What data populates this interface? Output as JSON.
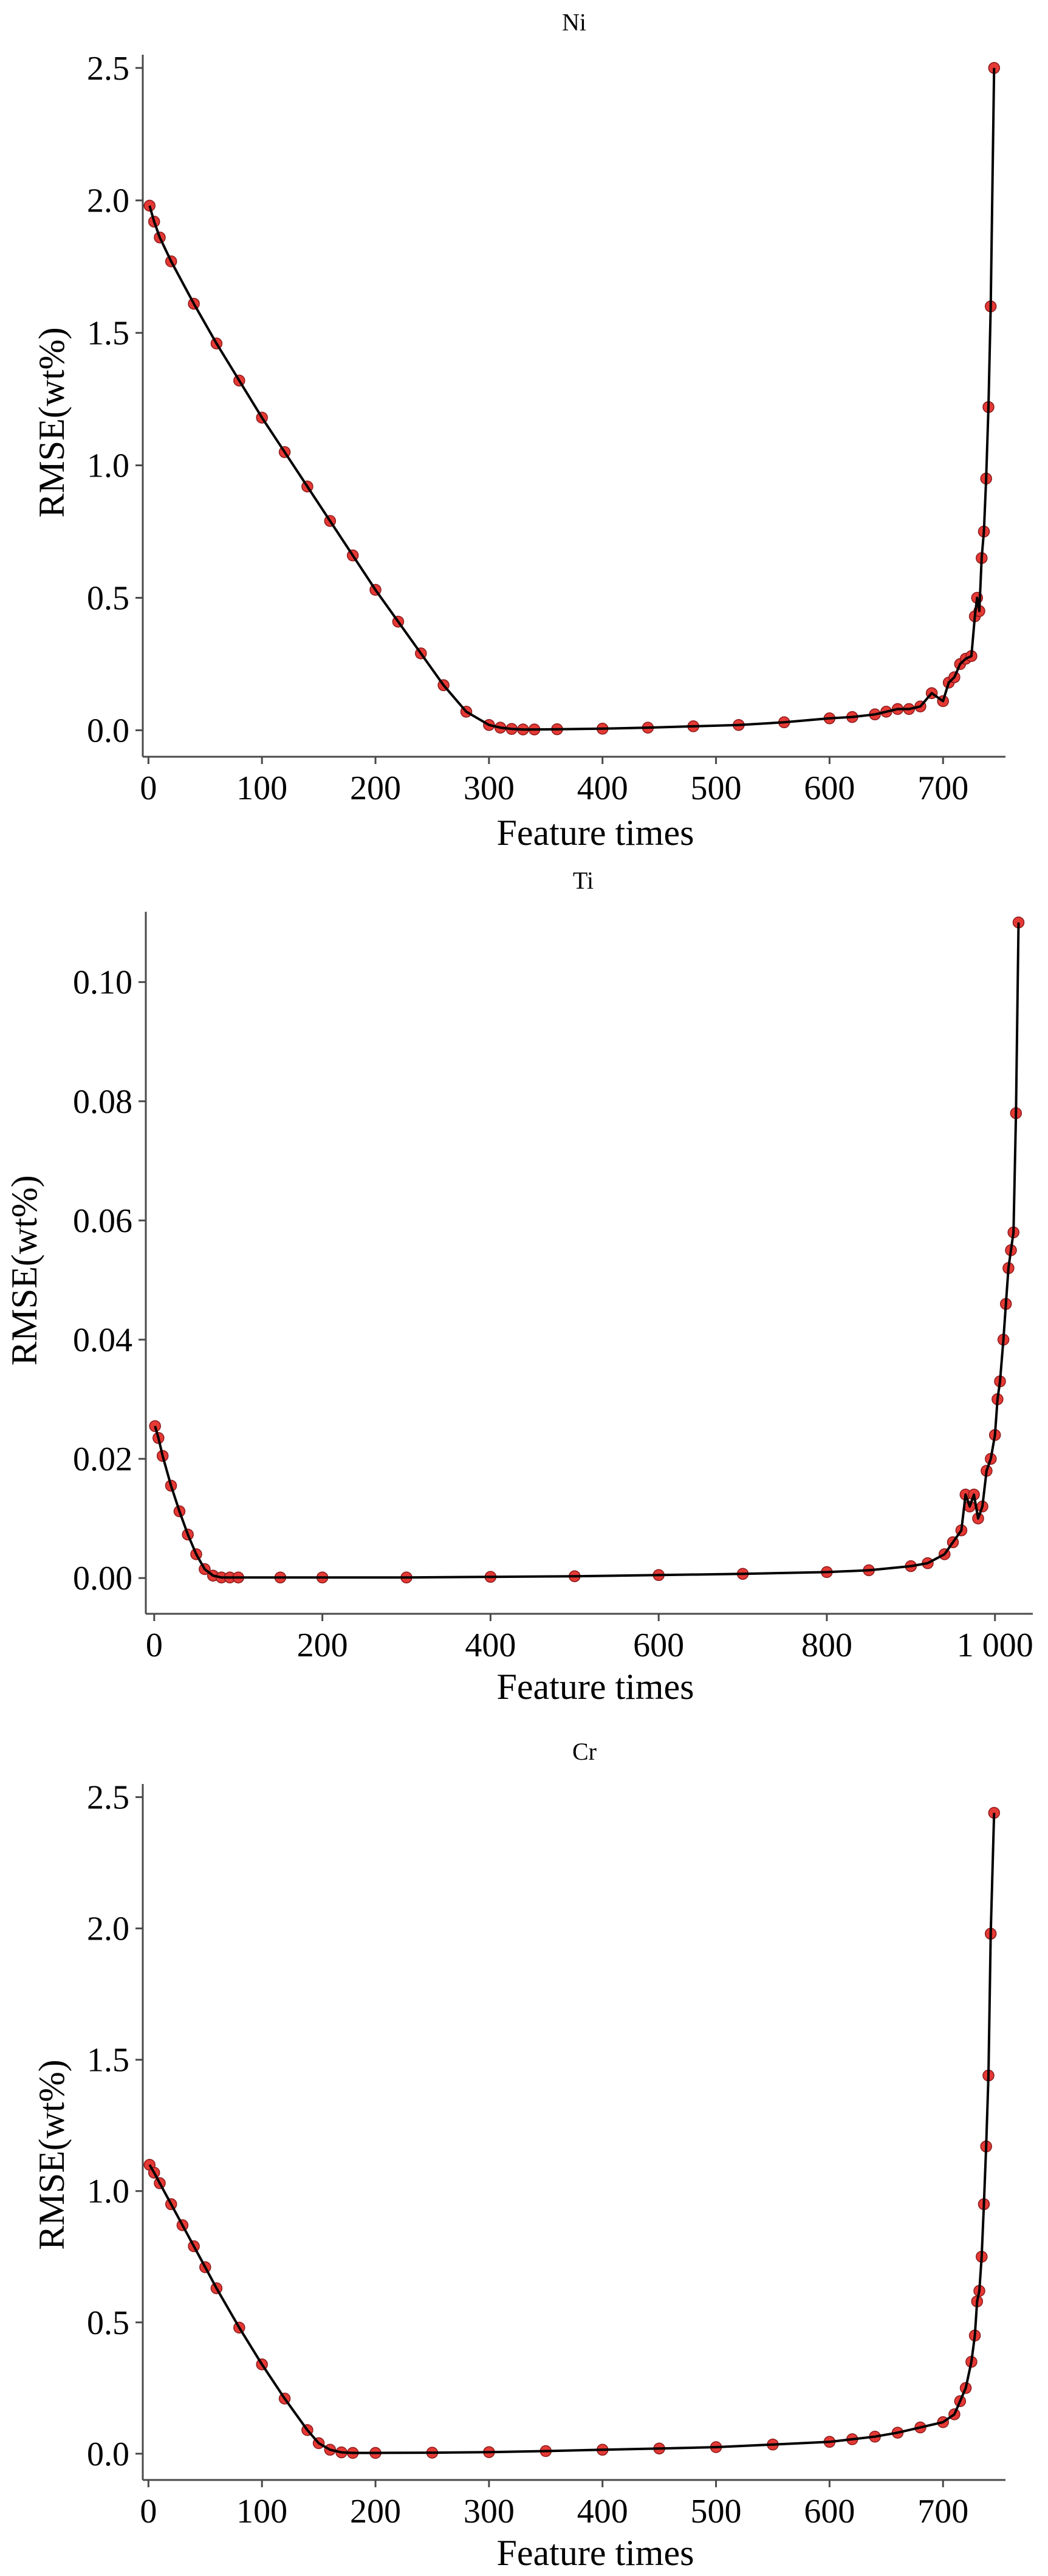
{
  "chart_data": [
    {
      "type": "line",
      "title": "Ni",
      "xlabel": "Feature times",
      "ylabel": "RMSE(wt%)",
      "xlim": [
        -5,
        755
      ],
      "ylim": [
        -0.1,
        2.55
      ],
      "xticks": [
        0,
        100,
        200,
        300,
        400,
        500,
        600,
        700
      ],
      "xtick_labels": [
        "0",
        "100",
        "200",
        "300",
        "400",
        "500",
        "600",
        "700"
      ],
      "yticks": [
        0.0,
        0.5,
        1.0,
        1.5,
        2.0,
        2.5
      ],
      "ytick_labels": [
        "0.0",
        "0.5",
        "1.0",
        "1.5",
        "2.0",
        "2.5"
      ],
      "grid": false,
      "line_color": "#000000",
      "marker_color": "#e53935",
      "series": [
        {
          "x": [
            1,
            5,
            10,
            20,
            40,
            60,
            80,
            100,
            120,
            140,
            160,
            180,
            200,
            220,
            240,
            260,
            280,
            300,
            310,
            320,
            330,
            340,
            360,
            400,
            440,
            480,
            520,
            560,
            600,
            620,
            640,
            650,
            660,
            670,
            680,
            690,
            700,
            705,
            710,
            715,
            720,
            725,
            728,
            730,
            732,
            734,
            736,
            738,
            740,
            742,
            745
          ],
          "y": [
            1.98,
            1.92,
            1.86,
            1.77,
            1.61,
            1.46,
            1.32,
            1.18,
            1.05,
            0.92,
            0.79,
            0.66,
            0.53,
            0.41,
            0.29,
            0.17,
            0.07,
            0.02,
            0.01,
            0.005,
            0.003,
            0.003,
            0.004,
            0.006,
            0.01,
            0.015,
            0.02,
            0.03,
            0.045,
            0.05,
            0.06,
            0.07,
            0.08,
            0.08,
            0.09,
            0.14,
            0.11,
            0.18,
            0.2,
            0.25,
            0.27,
            0.28,
            0.43,
            0.5,
            0.45,
            0.65,
            0.75,
            0.95,
            1.22,
            1.6,
            2.5
          ]
        }
      ]
    },
    {
      "type": "line",
      "title": "Ti",
      "xlabel": "Feature times",
      "ylabel": "RMSE(wt%)",
      "xlim": [
        -10,
        1045
      ],
      "ylim": [
        -0.006,
        0.1118
      ],
      "xticks": [
        0,
        200,
        400,
        600,
        800,
        1000
      ],
      "xtick_labels": [
        "0",
        "200",
        "400",
        "600",
        "800",
        "1 000"
      ],
      "yticks": [
        0.0,
        0.02,
        0.04,
        0.06,
        0.08,
        0.1
      ],
      "ytick_labels": [
        "0.00",
        "0.02",
        "0.04",
        "0.06",
        "0.08",
        "0.10"
      ],
      "grid": false,
      "line_color": "#000000",
      "marker_color": "#e53935",
      "series": [
        {
          "x": [
            1,
            5,
            10,
            20,
            30,
            40,
            50,
            60,
            70,
            80,
            90,
            100,
            150,
            200,
            300,
            400,
            500,
            600,
            700,
            800,
            850,
            900,
            920,
            940,
            950,
            960,
            965,
            970,
            975,
            980,
            985,
            990,
            995,
            1000,
            1003,
            1006,
            1010,
            1013,
            1016,
            1019,
            1022,
            1025,
            1028
          ],
          "y": [
            0.0255,
            0.0235,
            0.0205,
            0.0155,
            0.0112,
            0.0073,
            0.004,
            0.0015,
            0.0004,
            0.0001,
            0.0001,
            0.0001,
            0.0001,
            0.0001,
            0.0001,
            0.0002,
            0.0003,
            0.0005,
            0.0007,
            0.001,
            0.0013,
            0.002,
            0.0025,
            0.004,
            0.006,
            0.008,
            0.014,
            0.012,
            0.014,
            0.01,
            0.012,
            0.018,
            0.02,
            0.024,
            0.03,
            0.033,
            0.04,
            0.046,
            0.052,
            0.055,
            0.058,
            0.078,
            0.11
          ]
        }
      ]
    },
    {
      "type": "line",
      "title": "Cr",
      "xlabel": "Feature times",
      "ylabel": "RMSE(wt%)",
      "xlim": [
        -5,
        755
      ],
      "ylim": [
        -0.1,
        2.55
      ],
      "xticks": [
        0,
        100,
        200,
        300,
        400,
        500,
        600,
        700
      ],
      "xtick_labels": [
        "0",
        "100",
        "200",
        "300",
        "400",
        "500",
        "600",
        "700"
      ],
      "yticks": [
        0.0,
        0.5,
        1.0,
        1.5,
        2.0,
        2.5
      ],
      "ytick_labels": [
        "0.0",
        "0.5",
        "1.0",
        "1.5",
        "2.0",
        "2.5"
      ],
      "grid": false,
      "line_color": "#000000",
      "marker_color": "#e53935",
      "series": [
        {
          "x": [
            1,
            5,
            10,
            20,
            30,
            40,
            50,
            60,
            80,
            100,
            120,
            140,
            150,
            160,
            170,
            180,
            200,
            250,
            300,
            350,
            400,
            450,
            500,
            550,
            600,
            620,
            640,
            660,
            680,
            700,
            710,
            715,
            720,
            725,
            728,
            730,
            732,
            734,
            736,
            738,
            740,
            742,
            745
          ],
          "y": [
            1.1,
            1.07,
            1.03,
            0.95,
            0.87,
            0.79,
            0.71,
            0.63,
            0.48,
            0.34,
            0.21,
            0.09,
            0.04,
            0.015,
            0.005,
            0.003,
            0.003,
            0.004,
            0.006,
            0.01,
            0.015,
            0.02,
            0.025,
            0.035,
            0.045,
            0.055,
            0.065,
            0.08,
            0.1,
            0.12,
            0.15,
            0.2,
            0.25,
            0.35,
            0.45,
            0.58,
            0.62,
            0.75,
            0.95,
            1.17,
            1.44,
            1.98,
            2.44
          ]
        }
      ]
    }
  ]
}
